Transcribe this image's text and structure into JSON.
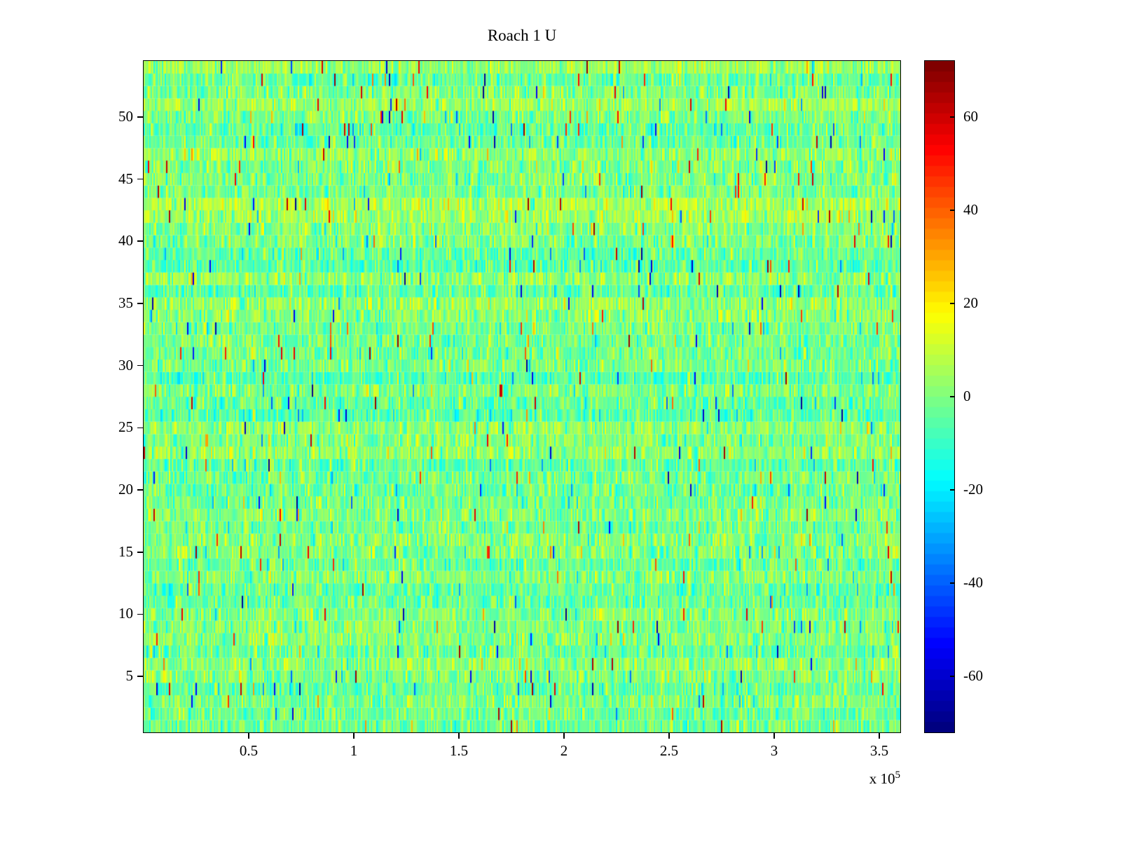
{
  "chart_data": {
    "type": "heatmap",
    "title": "Roach 1 U",
    "colormap": "jet",
    "x_axis": {
      "min": 0,
      "max": 360000,
      "ticks": [
        50000,
        100000,
        150000,
        200000,
        250000,
        300000,
        350000
      ],
      "tick_labels": [
        "0.5",
        "1",
        "1.5",
        "2",
        "2.5",
        "3",
        "3.5"
      ],
      "exponent_base": "x 10",
      "exponent_power": "5"
    },
    "y_axis": {
      "min": 0.5,
      "max": 54.5,
      "ticks": [
        5,
        10,
        15,
        20,
        25,
        30,
        35,
        40,
        45,
        50
      ],
      "tick_labels": [
        "5",
        "10",
        "15",
        "20",
        "25",
        "30",
        "35",
        "40",
        "45",
        "50"
      ]
    },
    "colorbar": {
      "min": -72,
      "max": 72,
      "ticks": [
        60,
        40,
        20,
        0,
        -20,
        -40,
        -60
      ],
      "tick_labels": [
        "60",
        "40",
        "20",
        "0",
        "-20",
        "-40",
        "-60"
      ],
      "segments": 64
    },
    "grid": {
      "rows": 54,
      "cols": 540
    },
    "noise": {
      "mean": 0,
      "std": 7.5,
      "row_std": 2.5,
      "outlier_prob": 0.015,
      "seed": 42
    }
  }
}
